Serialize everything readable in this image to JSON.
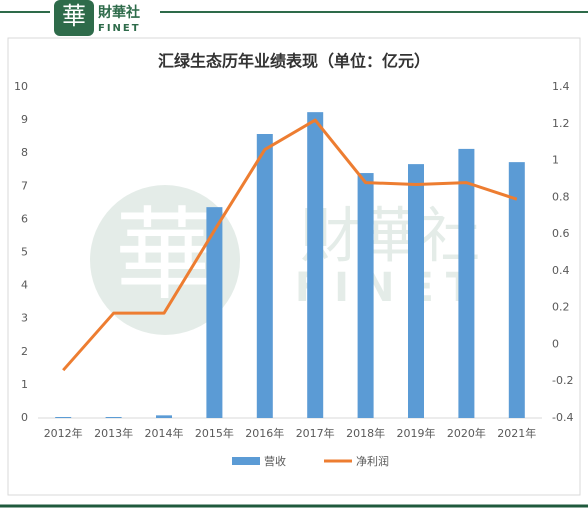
{
  "logo": {
    "mark": "華",
    "name": "財華社",
    "latin": "FINET"
  },
  "chart_data": {
    "type": "bar_line",
    "title": "汇绿生态历年业绩表现（单位：亿元）",
    "categories": [
      "2012年",
      "2013年",
      "2014年",
      "2015年",
      "2016年",
      "2017年",
      "2018年",
      "2019年",
      "2020年",
      "2021年"
    ],
    "series": [
      {
        "name": "营收",
        "type": "bar",
        "color": "#5b9bd5",
        "values": [
          0.03,
          0.03,
          0.08,
          6.37,
          8.58,
          9.24,
          7.4,
          7.67,
          8.13,
          7.73
        ]
      },
      {
        "name": "净利润",
        "type": "line",
        "axis": "y2",
        "color": "#ed7d31",
        "values": [
          -0.14,
          0.17,
          0.17,
          0.62,
          1.06,
          1.22,
          0.88,
          0.87,
          0.88,
          0.79
        ]
      }
    ],
    "ylim": [
      0,
      10
    ],
    "yticks": [
      0,
      1,
      2,
      3,
      4,
      5,
      6,
      7,
      8,
      9,
      10
    ],
    "y2lim": [
      -0.4,
      1.4
    ],
    "y2ticks": [
      -0.4,
      -0.2,
      0,
      0.2,
      0.4,
      0.6,
      0.8,
      1,
      1.2,
      1.4
    ],
    "legend": "bottom"
  }
}
